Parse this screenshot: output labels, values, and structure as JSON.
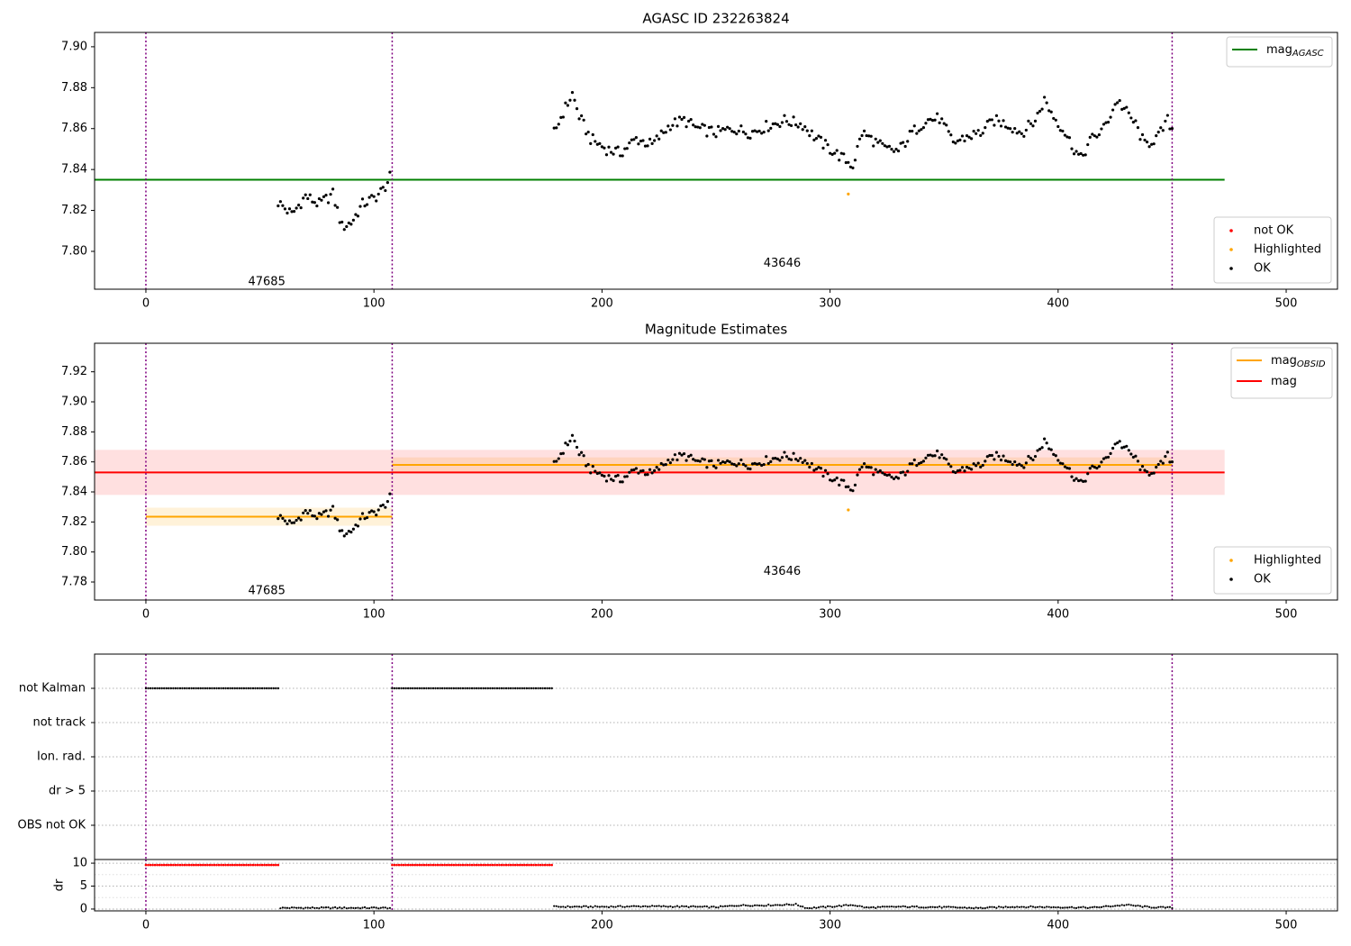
{
  "chart_data": [
    {
      "type": "scatter",
      "title": "AGASC ID 232263824",
      "xlim": [
        -22.5,
        522.5
      ],
      "ylim": [
        7.7815,
        7.907
      ],
      "xticks": [
        0,
        100,
        200,
        300,
        400,
        500
      ],
      "yticks": [
        7.8,
        7.82,
        7.84,
        7.86,
        7.88,
        7.9
      ],
      "obs_boundaries": [
        0,
        108,
        450
      ],
      "obs_labels": [
        {
          "text": "47685",
          "x": 53,
          "y": 7.785
        },
        {
          "text": "43646",
          "x": 279,
          "y": 7.794
        }
      ],
      "hlines": [
        {
          "name": "mag_AGASC",
          "y": 7.835,
          "x0": -22.5,
          "x1": 473,
          "color": "#008000"
        }
      ],
      "series_ok": {
        "name": "OK",
        "color": "#000000",
        "segments": [
          {
            "x0": 58,
            "x1": 107,
            "keys": [
              [
                58,
                7.824
              ],
              [
                64,
                7.818
              ],
              [
                70,
                7.827
              ],
              [
                76,
                7.823
              ],
              [
                82,
                7.828
              ],
              [
                86,
                7.812
              ],
              [
                90,
                7.814
              ],
              [
                95,
                7.823
              ],
              [
                100,
                7.826
              ],
              [
                104,
                7.83
              ],
              [
                107,
                7.836
              ]
            ]
          },
          {
            "x0": 179,
            "x1": 450,
            "keys": [
              [
                179,
                7.858
              ],
              [
                183,
                7.868
              ],
              [
                187,
                7.877
              ],
              [
                190,
                7.866
              ],
              [
                195,
                7.855
              ],
              [
                202,
                7.85
              ],
              [
                208,
                7.848
              ],
              [
                215,
                7.855
              ],
              [
                222,
                7.852
              ],
              [
                230,
                7.862
              ],
              [
                236,
                7.864
              ],
              [
                242,
                7.86
              ],
              [
                250,
                7.858
              ],
              [
                258,
                7.86
              ],
              [
                265,
                7.858
              ],
              [
                272,
                7.861
              ],
              [
                280,
                7.864
              ],
              [
                288,
                7.862
              ],
              [
                294,
                7.855
              ],
              [
                300,
                7.85
              ],
              [
                305,
                7.846
              ],
              [
                310,
                7.842
              ],
              [
                314,
                7.858
              ],
              [
                318,
                7.855
              ],
              [
                324,
                7.85
              ],
              [
                330,
                7.849
              ],
              [
                336,
                7.858
              ],
              [
                342,
                7.864
              ],
              [
                348,
                7.865
              ],
              [
                354,
                7.853
              ],
              [
                360,
                7.856
              ],
              [
                366,
                7.858
              ],
              [
                372,
                7.864
              ],
              [
                378,
                7.862
              ],
              [
                384,
                7.858
              ],
              [
                390,
                7.864
              ],
              [
                394,
                7.874
              ],
              [
                398,
                7.866
              ],
              [
                402,
                7.86
              ],
              [
                406,
                7.852
              ],
              [
                410,
                7.845
              ],
              [
                414,
                7.854
              ],
              [
                420,
                7.86
              ],
              [
                426,
                7.874
              ],
              [
                430,
                7.868
              ],
              [
                434,
                7.862
              ],
              [
                438,
                7.852
              ],
              [
                444,
                7.856
              ],
              [
                448,
                7.864
              ],
              [
                450,
                7.86
              ]
            ]
          }
        ]
      },
      "highlighted": [
        [
          308,
          7.828
        ]
      ],
      "legend_lines": [
        {
          "label": "mag",
          "sub": "AGASC",
          "color": "#008000"
        }
      ],
      "legend_points": [
        {
          "label": "not OK",
          "color": "#ff0000"
        },
        {
          "label": "Highlighted",
          "color": "#ffa500"
        },
        {
          "label": "OK",
          "color": "#000000"
        }
      ]
    },
    {
      "type": "scatter",
      "title": "Magnitude Estimates",
      "xlim": [
        -22.5,
        522.5
      ],
      "ylim": [
        7.768,
        7.939
      ],
      "xticks": [
        0,
        100,
        200,
        300,
        400,
        500
      ],
      "yticks": [
        7.78,
        7.8,
        7.82,
        7.84,
        7.86,
        7.88,
        7.9,
        7.92
      ],
      "obs_boundaries": [
        0,
        108,
        450
      ],
      "obs_labels": [
        {
          "text": "47685",
          "x": 53,
          "y": 7.774
        },
        {
          "text": "43646",
          "x": 279,
          "y": 7.787
        }
      ],
      "hlines": [
        {
          "name": "mag_OBSID 47685",
          "y": 7.8235,
          "x0": 0,
          "x1": 108,
          "color": "#ffa500",
          "band": [
            7.8175,
            7.8295
          ],
          "band_color": "rgba(255,165,0,0.15)"
        },
        {
          "name": "mag_OBSID 43646",
          "y": 7.858,
          "x0": 108,
          "x1": 450,
          "color": "#ffa500",
          "band": [
            7.853,
            7.863
          ],
          "band_color": "rgba(255,165,0,0.15)"
        },
        {
          "name": "mag",
          "y": 7.853,
          "x0": -22.5,
          "x1": 473,
          "color": "#ff0000",
          "band": [
            7.838,
            7.868
          ],
          "band_color": "rgba(255,0,0,0.12)"
        }
      ],
      "series_ok": {
        "name": "OK",
        "color": "#000000",
        "segments": [
          {
            "x0": 58,
            "x1": 107,
            "keys": [
              [
                58,
                7.824
              ],
              [
                64,
                7.818
              ],
              [
                70,
                7.827
              ],
              [
                76,
                7.823
              ],
              [
                82,
                7.828
              ],
              [
                86,
                7.812
              ],
              [
                90,
                7.814
              ],
              [
                95,
                7.823
              ],
              [
                100,
                7.826
              ],
              [
                104,
                7.83
              ],
              [
                107,
                7.836
              ]
            ]
          },
          {
            "x0": 179,
            "x1": 450,
            "keys": [
              [
                179,
                7.858
              ],
              [
                183,
                7.868
              ],
              [
                187,
                7.877
              ],
              [
                190,
                7.866
              ],
              [
                195,
                7.855
              ],
              [
                202,
                7.85
              ],
              [
                208,
                7.848
              ],
              [
                215,
                7.855
              ],
              [
                222,
                7.852
              ],
              [
                230,
                7.862
              ],
              [
                236,
                7.864
              ],
              [
                242,
                7.86
              ],
              [
                250,
                7.858
              ],
              [
                258,
                7.86
              ],
              [
                265,
                7.858
              ],
              [
                272,
                7.861
              ],
              [
                280,
                7.864
              ],
              [
                288,
                7.862
              ],
              [
                294,
                7.855
              ],
              [
                300,
                7.85
              ],
              [
                305,
                7.846
              ],
              [
                310,
                7.842
              ],
              [
                314,
                7.858
              ],
              [
                318,
                7.855
              ],
              [
                324,
                7.85
              ],
              [
                330,
                7.849
              ],
              [
                336,
                7.858
              ],
              [
                342,
                7.864
              ],
              [
                348,
                7.865
              ],
              [
                354,
                7.853
              ],
              [
                360,
                7.856
              ],
              [
                366,
                7.858
              ],
              [
                372,
                7.864
              ],
              [
                378,
                7.862
              ],
              [
                384,
                7.858
              ],
              [
                390,
                7.864
              ],
              [
                394,
                7.874
              ],
              [
                398,
                7.866
              ],
              [
                402,
                7.86
              ],
              [
                406,
                7.852
              ],
              [
                410,
                7.845
              ],
              [
                414,
                7.854
              ],
              [
                420,
                7.86
              ],
              [
                426,
                7.874
              ],
              [
                430,
                7.868
              ],
              [
                434,
                7.862
              ],
              [
                438,
                7.852
              ],
              [
                444,
                7.856
              ],
              [
                448,
                7.864
              ],
              [
                450,
                7.86
              ]
            ]
          }
        ]
      },
      "highlighted": [
        [
          308,
          7.828
        ]
      ],
      "legend_lines": [
        {
          "label": "mag",
          "sub": "OBSID",
          "color": "#ffa500"
        },
        {
          "label": "mag",
          "sub": "",
          "color": "#ff0000"
        }
      ],
      "legend_points": [
        {
          "label": "Highlighted",
          "color": "#ffa500"
        },
        {
          "label": "OK",
          "color": "#000000"
        }
      ]
    },
    {
      "type": "scatter",
      "title": "",
      "flag_categories": [
        "not Kalman",
        "not track",
        "Ion. rad.",
        "dr > 5",
        "OBS not OK"
      ],
      "xlim": [
        -22.5,
        522.5
      ],
      "xticks": [
        0,
        100,
        200,
        300,
        400,
        500
      ],
      "obs_boundaries": [
        0,
        108,
        450
      ],
      "flags": [
        {
          "category": "not Kalman",
          "x0": 0,
          "x1": 58
        },
        {
          "category": "not Kalman",
          "x0": 108,
          "x1": 178
        }
      ],
      "dr": {
        "ylabel": "dr",
        "ylim": [
          -0.4,
          10.8
        ],
        "yticks": [
          0,
          5,
          10
        ],
        "not_ok": [
          {
            "x0": 0,
            "x1": 58,
            "y": 9.6
          },
          {
            "x0": 108,
            "x1": 178,
            "y": 9.6
          }
        ],
        "ok": [
          {
            "x0": 59,
            "x1": 107,
            "y": 0.25
          },
          {
            "x0": 179,
            "x1": 450,
            "keys": [
              [
                179,
                0.5
              ],
              [
                200,
                0.5
              ],
              [
                220,
                0.6
              ],
              [
                240,
                0.5
              ],
              [
                250,
                0.4
              ],
              [
                260,
                0.8
              ],
              [
                270,
                0.8
              ],
              [
                285,
                1.0
              ],
              [
                290,
                0.2
              ],
              [
                300,
                0.5
              ],
              [
                310,
                0.9
              ],
              [
                316,
                0.3
              ],
              [
                330,
                0.5
              ],
              [
                350,
                0.4
              ],
              [
                365,
                0.2
              ],
              [
                380,
                0.5
              ],
              [
                400,
                0.4
              ],
              [
                415,
                0.3
              ],
              [
                430,
                0.9
              ],
              [
                440,
                0.4
              ],
              [
                450,
                0.3
              ]
            ]
          }
        ]
      }
    }
  ]
}
